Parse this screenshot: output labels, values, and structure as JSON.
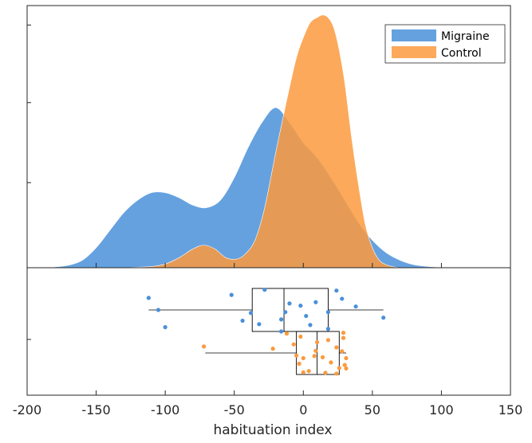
{
  "chart_data": {
    "type": "raincloud",
    "xlabel": "habituation index",
    "xlim": [
      -200,
      150
    ],
    "xticks": [
      -200,
      -150,
      -100,
      -50,
      0,
      50,
      100,
      150
    ],
    "xtick_labels": [
      "-200",
      "-150",
      "-100",
      "-50",
      "0",
      "50",
      "100",
      "150"
    ],
    "grid": false,
    "legend": {
      "position": "top-right",
      "entries": [
        "Migraine",
        "Control"
      ]
    },
    "density_panel": {
      "ylim": [
        0,
        1
      ],
      "yticks": [
        0.34,
        0.66,
        0.97
      ]
    },
    "series": [
      {
        "name": "Migraine",
        "color": "#4a90d9",
        "opacity": 0.85,
        "density": {
          "x": [
            -180,
            -170,
            -160,
            -150,
            -140,
            -130,
            -120,
            -110,
            -100,
            -90,
            -80,
            -70,
            -60,
            -50,
            -40,
            -30,
            -20,
            -10,
            0,
            10,
            20,
            30,
            40,
            50,
            60,
            70,
            80,
            90,
            100,
            110,
            120,
            128
          ],
          "y": [
            0.003,
            0.01,
            0.03,
            0.08,
            0.15,
            0.22,
            0.27,
            0.3,
            0.3,
            0.28,
            0.25,
            0.24,
            0.27,
            0.36,
            0.48,
            0.58,
            0.64,
            0.58,
            0.5,
            0.44,
            0.36,
            0.27,
            0.18,
            0.11,
            0.06,
            0.03,
            0.012,
            0.005,
            0.002,
            0.001,
            0.0005,
            0.0
          ]
        },
        "box": {
          "min": -112,
          "q1": -37,
          "median": -14,
          "q3": 18,
          "max": 58
        },
        "points": [
          [
            -112,
            0.22
          ],
          [
            -105,
            0.5
          ],
          [
            -100,
            0.9
          ],
          [
            -52,
            0.15
          ],
          [
            -44,
            0.75
          ],
          [
            -38,
            0.57
          ],
          [
            -32,
            0.83
          ],
          [
            -28,
            0.03
          ],
          [
            -16,
            1.0
          ],
          [
            -16,
            0.72
          ],
          [
            -13,
            0.55
          ],
          [
            -10,
            0.35
          ],
          [
            -2,
            0.4
          ],
          [
            2,
            0.64
          ],
          [
            5,
            0.85
          ],
          [
            9,
            0.32
          ],
          [
            18,
            0.55
          ],
          [
            18,
            0.94
          ],
          [
            24,
            0.05
          ],
          [
            28,
            0.24
          ],
          [
            38,
            0.42
          ],
          [
            58,
            0.68
          ]
        ]
      },
      {
        "name": "Control",
        "color": "#fb9a3e",
        "opacity": 0.85,
        "density": {
          "x": [
            -130,
            -110,
            -100,
            -90,
            -80,
            -72,
            -64,
            -56,
            -48,
            -42,
            -35,
            -28,
            -20,
            -12,
            -5,
            0,
            5,
            10,
            14,
            18,
            22,
            26,
            30,
            35,
            40,
            45,
            50,
            55,
            60,
            65,
            70
          ],
          "y": [
            0.0,
            0.005,
            0.015,
            0.04,
            0.075,
            0.09,
            0.075,
            0.04,
            0.035,
            0.055,
            0.11,
            0.24,
            0.46,
            0.67,
            0.84,
            0.92,
            0.98,
            1.0,
            1.01,
            1.0,
            0.96,
            0.87,
            0.74,
            0.52,
            0.33,
            0.17,
            0.08,
            0.03,
            0.012,
            0.004,
            0.0
          ]
        },
        "box": {
          "min": -71,
          "q1": -5,
          "median": 10,
          "q3": 26,
          "max": 31
        },
        "points": [
          [
            -72,
            0.35
          ],
          [
            -22,
            0.4
          ],
          [
            -12,
            0.05
          ],
          [
            -7,
            0.3
          ],
          [
            -5,
            0.56
          ],
          [
            -3,
            0.75
          ],
          [
            -2,
            0.12
          ],
          [
            0,
            0.95
          ],
          [
            0,
            0.62
          ],
          [
            4,
            0.92
          ],
          [
            8,
            0.57
          ],
          [
            9,
            0.45
          ],
          [
            10,
            0.25
          ],
          [
            14,
            0.6
          ],
          [
            16,
            0.96
          ],
          [
            18,
            0.2
          ],
          [
            20,
            0.72
          ],
          [
            24,
            0.98
          ],
          [
            24,
            0.37
          ],
          [
            26,
            0.85
          ],
          [
            28,
            0.46
          ],
          [
            29,
            0.03
          ],
          [
            29,
            0.15
          ],
          [
            30,
            0.78
          ],
          [
            31,
            0.62
          ],
          [
            31,
            0.86
          ]
        ]
      }
    ]
  }
}
